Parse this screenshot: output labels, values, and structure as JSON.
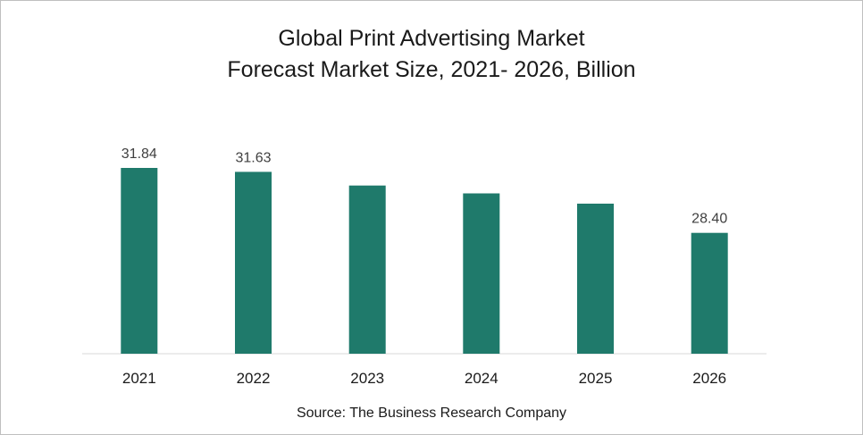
{
  "chart_data": {
    "type": "bar",
    "title": "Global Print Advertising Market",
    "subtitle": "Forecast Market Size, 2021- 2026, Billion",
    "categories": [
      "2021",
      "2022",
      "2023",
      "2024",
      "2025",
      "2026"
    ],
    "values": [
      31.84,
      31.63,
      30.91,
      30.49,
      29.95,
      28.4
    ],
    "data_labels": [
      "31.84",
      "31.63",
      "",
      "",
      "",
      "28.40"
    ],
    "xlabel": "",
    "ylabel": "",
    "ylim": [
      22.0,
      32.5
    ],
    "grid": false,
    "bar_color": "#1f7a6b",
    "source": "Source: The Business Research Company"
  }
}
